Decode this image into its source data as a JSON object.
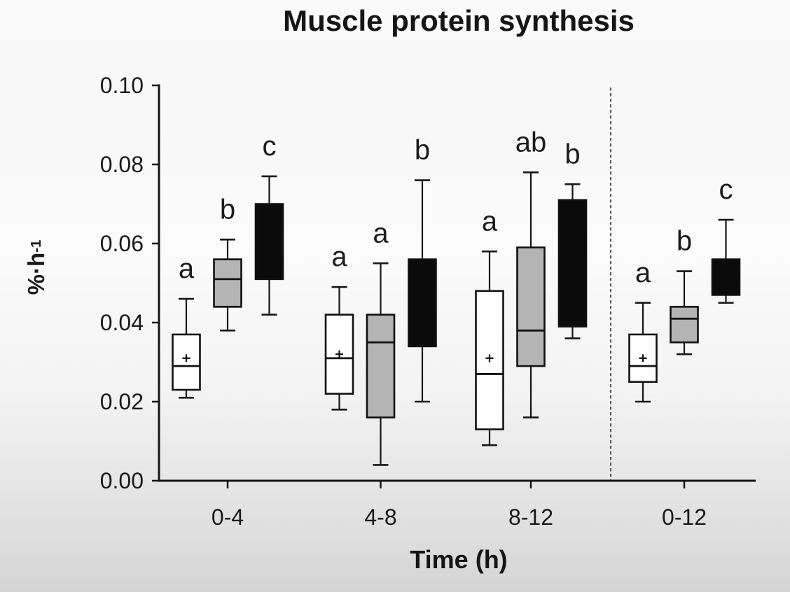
{
  "chart_data": {
    "type": "boxplot",
    "title": "Muscle protein synthesis",
    "xlabel": "Time (h)",
    "ylabel_base": "%·h",
    "ylabel_exponent": "-1",
    "ylim": [
      0,
      0.1
    ],
    "yticks": [
      0,
      0.02,
      0.04,
      0.06,
      0.08,
      0.1
    ],
    "ytick_labels": [
      "0.00",
      "0.02",
      "0.04",
      "0.06",
      "0.08",
      "0.10"
    ],
    "categories": [
      "0-4",
      "4-8",
      "8-12",
      "0-12"
    ],
    "separator_between": [
      "8-12",
      "0-12"
    ],
    "legend_position": "none",
    "grid": false,
    "colors": {
      "axis": "#161616",
      "letter": "#1c1c1c"
    },
    "series": [
      {
        "name": "white",
        "fill": "#fefefe",
        "boxes": [
          {
            "category": "0-4",
            "whisker_low": 0.021,
            "q1": 0.023,
            "median": 0.029,
            "q3": 0.037,
            "whisker_high": 0.046,
            "mean": 0.031,
            "letter": "a"
          },
          {
            "category": "4-8",
            "whisker_low": 0.018,
            "q1": 0.022,
            "median": 0.031,
            "q3": 0.042,
            "whisker_high": 0.049,
            "mean": 0.032,
            "letter": "a"
          },
          {
            "category": "8-12",
            "whisker_low": 0.009,
            "q1": 0.013,
            "median": 0.027,
            "q3": 0.048,
            "whisker_high": 0.058,
            "mean": 0.031,
            "letter": "a"
          },
          {
            "category": "0-12",
            "whisker_low": 0.02,
            "q1": 0.025,
            "median": 0.029,
            "q3": 0.037,
            "whisker_high": 0.045,
            "mean": 0.031,
            "letter": "a"
          }
        ]
      },
      {
        "name": "grey",
        "fill": "#b4b4b4",
        "boxes": [
          {
            "category": "0-4",
            "whisker_low": 0.038,
            "q1": 0.044,
            "median": 0.051,
            "q3": 0.056,
            "whisker_high": 0.061,
            "mean": null,
            "letter": "b"
          },
          {
            "category": "4-8",
            "whisker_low": 0.004,
            "q1": 0.016,
            "median": 0.035,
            "q3": 0.042,
            "whisker_high": 0.055,
            "mean": null,
            "letter": "a"
          },
          {
            "category": "8-12",
            "whisker_low": 0.016,
            "q1": 0.029,
            "median": 0.038,
            "q3": 0.059,
            "whisker_high": 0.078,
            "mean": null,
            "letter": "ab"
          },
          {
            "category": "0-12",
            "whisker_low": 0.032,
            "q1": 0.035,
            "median": 0.041,
            "q3": 0.044,
            "whisker_high": 0.053,
            "mean": null,
            "letter": "b"
          }
        ]
      },
      {
        "name": "black",
        "fill": "#0b0b0b",
        "boxes": [
          {
            "category": "0-4",
            "whisker_low": 0.042,
            "q1": 0.051,
            "median": null,
            "q3": 0.07,
            "whisker_high": 0.077,
            "mean": null,
            "letter": "c"
          },
          {
            "category": "4-8",
            "whisker_low": 0.02,
            "q1": 0.034,
            "median": null,
            "q3": 0.056,
            "whisker_high": 0.076,
            "mean": null,
            "letter": "b"
          },
          {
            "category": "8-12",
            "whisker_low": 0.036,
            "q1": 0.039,
            "median": null,
            "q3": 0.071,
            "whisker_high": 0.075,
            "mean": null,
            "letter": "b"
          },
          {
            "category": "0-12",
            "whisker_low": 0.045,
            "q1": 0.047,
            "median": null,
            "q3": 0.056,
            "whisker_high": 0.066,
            "mean": null,
            "letter": "c"
          }
        ]
      }
    ]
  }
}
